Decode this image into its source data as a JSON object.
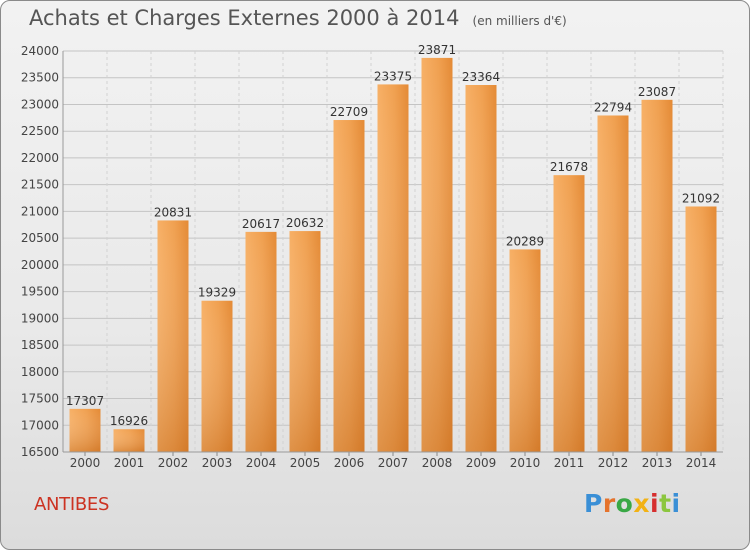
{
  "header": {
    "title": "Achats et Charges Externes 2000 à 2014",
    "subtitle": "(en milliers d'€)"
  },
  "footer": {
    "city": "ANTIBES",
    "logo_text": "Proxiti",
    "logo_colors": [
      "#3a8fd6",
      "#e5732c",
      "#39a845",
      "#f2b215",
      "#d62f2f",
      "#8cc63f",
      "#3a8fd6"
    ]
  },
  "chart_data": {
    "type": "bar",
    "categories": [
      "2000",
      "2001",
      "2002",
      "2003",
      "2004",
      "2005",
      "2006",
      "2007",
      "2008",
      "2009",
      "2010",
      "2011",
      "2012",
      "2013",
      "2014"
    ],
    "values": [
      17307,
      16926,
      20831,
      19329,
      20617,
      20632,
      22709,
      23375,
      23871,
      23364,
      20289,
      21678,
      22794,
      23087,
      21092
    ],
    "ylim": [
      16500,
      24000
    ],
    "yticks": [
      16500,
      17000,
      17500,
      18000,
      18500,
      19000,
      19500,
      20000,
      20500,
      21000,
      21500,
      22000,
      22500,
      23000,
      23500,
      24000
    ],
    "grid": true,
    "bar_color": "#f0a050"
  }
}
